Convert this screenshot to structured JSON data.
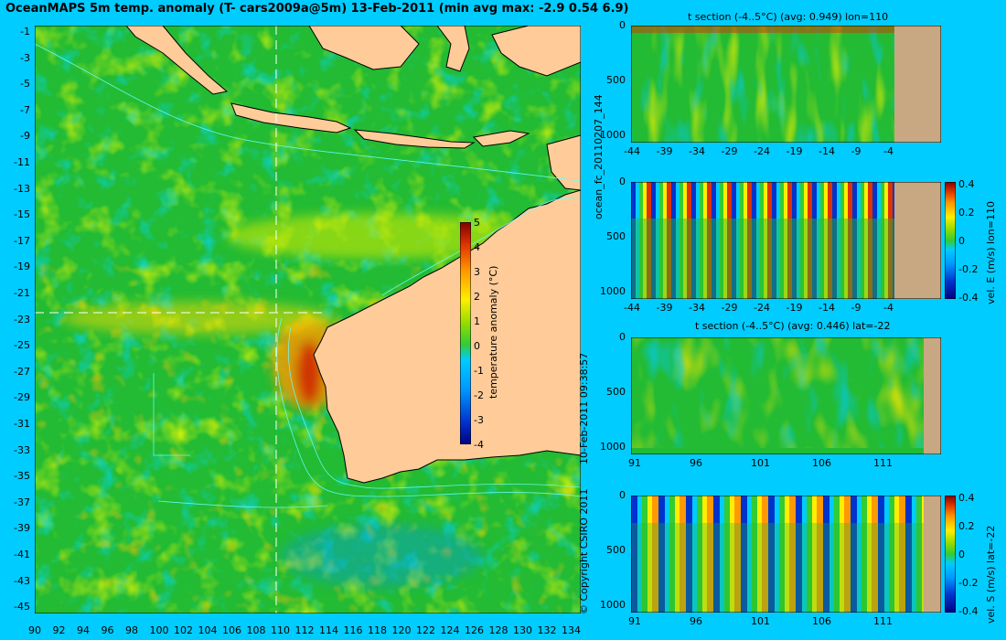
{
  "title": "OceanMAPS 5m temp. anomaly (T- cars2009a@5m) 13-Feb-2011 (min avg max: -2.9 0.54 6.9)",
  "map": {
    "lat_ticks": [
      "-1",
      "-3",
      "-5",
      "-7",
      "-9",
      "-11",
      "-13",
      "-15",
      "-17",
      "-19",
      "-21",
      "-23",
      "-25",
      "-27",
      "-29",
      "-31",
      "-33",
      "-35",
      "-37",
      "-39",
      "-41",
      "-43",
      "-45"
    ],
    "lon_ticks": [
      "90",
      "92",
      "94",
      "96",
      "98",
      "100",
      "102",
      "104",
      "106",
      "108",
      "110",
      "112",
      "114",
      "116",
      "118",
      "120",
      "122",
      "124",
      "126",
      "128",
      "130",
      "132",
      "134"
    ],
    "section_lon": 110,
    "section_lat": -22,
    "colorbar": {
      "label": "temperature anomaly (°C)",
      "ticks": [
        "5",
        "4",
        "3",
        "2",
        "1",
        "0",
        "-1",
        "-2",
        "-3",
        "-4"
      ]
    }
  },
  "sections": [
    {
      "title": "t section (-4..5°C) (avg: 0.949) lon=110",
      "y_ticks": [
        "0",
        "500",
        "1000"
      ],
      "x_ticks": [
        "-44",
        "-39",
        "-34",
        "-29",
        "-24",
        "-19",
        "-14",
        "-9",
        "-4"
      ]
    },
    {
      "title": "",
      "y_ticks": [
        "0",
        "500",
        "1000"
      ],
      "x_ticks": [
        "-44",
        "-39",
        "-34",
        "-29",
        "-24",
        "-19",
        "-14",
        "-9",
        "-4"
      ],
      "colorbar": {
        "label": "vel. E (m/s) lon=110",
        "ticks": [
          "0.4",
          "0.2",
          "0",
          "-0.2",
          "-0.4"
        ]
      }
    },
    {
      "title": "t section (-4..5°C) (avg: 0.446) lat=-22",
      "y_ticks": [
        "0",
        "500",
        "1000"
      ],
      "x_ticks": [
        "91",
        "96",
        "101",
        "106",
        "111"
      ]
    },
    {
      "title": "",
      "y_ticks": [
        "0",
        "500",
        "1000"
      ],
      "x_ticks": [
        "91",
        "96",
        "101",
        "106",
        "111"
      ],
      "colorbar": {
        "label": "vel. S (m/s) lat=-22",
        "ticks": [
          "0.4",
          "0.2",
          "0",
          "-0.2",
          "-0.4"
        ]
      }
    }
  ],
  "side_labels": {
    "run": "ocean_fc_20110207_144",
    "date": "10-Feb-2011 09:38:57",
    "copyright": "© Copyright CSIRO 2011"
  },
  "colors": {
    "background": "#00ccff",
    "land_map": "#ffcc99",
    "land_section": "#c8a882",
    "ocean_base": "#22bb33",
    "contour": "#66ffff",
    "colormap": [
      "#000080",
      "#0033cc",
      "#0099ff",
      "#00ccff",
      "#33cc33",
      "#99dd00",
      "#ffee00",
      "#ff9900",
      "#dd3300",
      "#800000"
    ]
  }
}
